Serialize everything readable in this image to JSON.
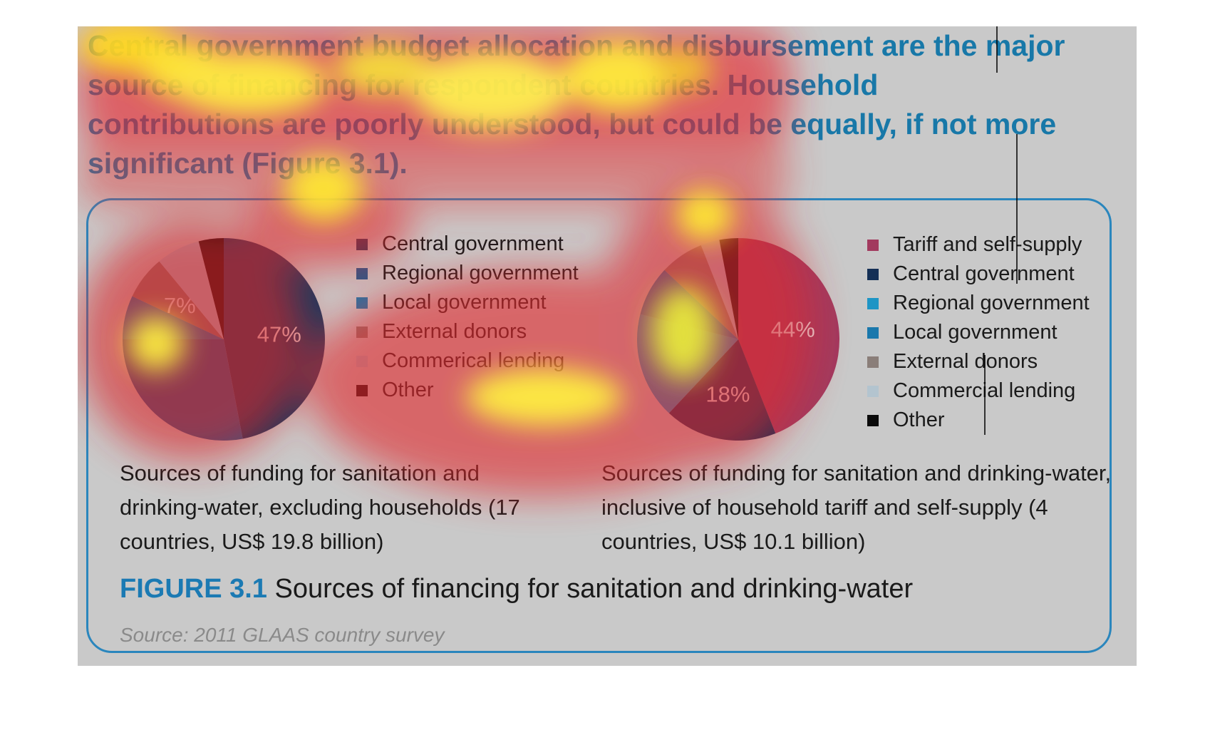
{
  "headline": "Central government budget allocation and disbursement are the major source of financing for respondent countries. Household contributions are poorly understood, but could be equally, if not more significant (Figure 3.1).",
  "figure": {
    "number": "FIGURE 3.1",
    "title": "Sources of financing for sanitation and drinking-water",
    "source": "Source: 2011 GLAAS country survey"
  },
  "colors": {
    "headline": "#1878a8",
    "accent_blue": "#1b7ab3",
    "panel_background": "#c9c9c9"
  },
  "chart_data": [
    {
      "type": "pie",
      "caption": "Sources of funding for sanitation and drinking-water, excluding households (17 countries, US$ 19.8 billion)",
      "slices": [
        {
          "label": "Central government",
          "value": 47,
          "value_label": "47%",
          "color": "#17395e"
        },
        {
          "label": "Regional government",
          "value": 28,
          "value_label": "",
          "color": "#1f5a8e"
        },
        {
          "label": "Local government",
          "value": 7,
          "value_label": "",
          "color": "#1a78ac"
        },
        {
          "label": "External donors",
          "value": 7,
          "value_label": "7%",
          "color": "#887b76"
        },
        {
          "label": "Commerical lending",
          "value": 7,
          "value_label": "",
          "color": "#aebfca"
        },
        {
          "label": "Other",
          "value": 4,
          "value_label": "",
          "color": "#0a0a0a"
        }
      ],
      "legend": [
        "Central government",
        "Regional government",
        "Local government",
        "External donors",
        "Commerical lending",
        "Other"
      ],
      "legend_position": "right"
    },
    {
      "type": "pie",
      "caption": "Sources of funding for sanitation and drinking-water, inclusive of household tariff and self-supply (4 countries, US$ 10.1 billion)",
      "slices": [
        {
          "label": "Tariff and self-supply",
          "value": 44,
          "value_label": "44%",
          "color": "#a23a5e"
        },
        {
          "label": "Central government",
          "value": 18,
          "value_label": "18%",
          "color": "#142f55"
        },
        {
          "label": "Regional government",
          "value": 17,
          "value_label": "",
          "color": "#1e95c5"
        },
        {
          "label": "Local government",
          "value": 8,
          "value_label": "",
          "color": "#1a78ac"
        },
        {
          "label": "External donors",
          "value": 7,
          "value_label": "",
          "color": "#8a7e79"
        },
        {
          "label": "Commercial lending",
          "value": 3,
          "value_label": "",
          "color": "#b3c4cf"
        },
        {
          "label": "Other",
          "value": 3,
          "value_label": "",
          "color": "#0a0a0a"
        }
      ],
      "legend": [
        "Tariff and self-supply",
        "Central government",
        "Regional government",
        "Local government",
        "External donors",
        "Commercial lending",
        "Other"
      ],
      "legend_position": "right"
    }
  ]
}
